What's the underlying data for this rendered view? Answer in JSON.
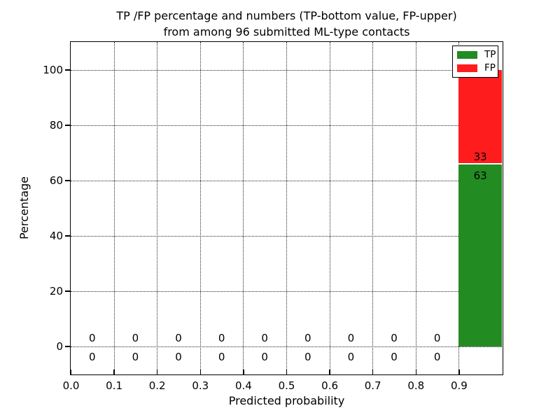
{
  "title": {
    "line1": "TP /FP percentage and numbers (TP-bottom value, FP-upper)",
    "line2": "from among 96 submitted ML-type contacts"
  },
  "axes": {
    "xlabel": "Predicted probability",
    "ylabel": "Percentage"
  },
  "legend": {
    "items": [
      {
        "label": "TP",
        "color": "#228B22"
      },
      {
        "label": "FP",
        "color": "#FF1C1C"
      }
    ]
  },
  "chart_data": {
    "type": "bar",
    "stacked": true,
    "title": "TP /FP percentage and numbers (TP-bottom value, FP-upper) from among 96 submitted ML-type contacts",
    "xlabel": "Predicted probability",
    "ylabel": "Percentage",
    "xlim": [
      0.0,
      1.0
    ],
    "ylim": [
      -10,
      110
    ],
    "xticks": [
      0.0,
      0.1,
      0.2,
      0.3,
      0.4,
      0.5,
      0.6,
      0.7,
      0.8,
      0.9
    ],
    "xtick_labels": [
      "0.0",
      "0.1",
      "0.2",
      "0.3",
      "0.4",
      "0.5",
      "0.6",
      "0.7",
      "0.8",
      "0.9"
    ],
    "yticks": [
      0,
      20,
      40,
      60,
      80,
      100
    ],
    "ytick_labels": [
      "0",
      "20",
      "40",
      "60",
      "80",
      "100"
    ],
    "grid": true,
    "grid_style": "dotted",
    "legend_position": "upper right",
    "total_submitted": 96,
    "bin_width": 0.1,
    "bin_centers": [
      0.05,
      0.15,
      0.25,
      0.35,
      0.45,
      0.55,
      0.65,
      0.75,
      0.85,
      0.95
    ],
    "categories": [
      "0.0-0.1",
      "0.1-0.2",
      "0.2-0.3",
      "0.3-0.4",
      "0.4-0.5",
      "0.5-0.6",
      "0.6-0.7",
      "0.7-0.8",
      "0.8-0.9",
      "0.9-1.0"
    ],
    "series": [
      {
        "name": "TP",
        "color": "#228B22",
        "counts": [
          0,
          0,
          0,
          0,
          0,
          0,
          0,
          0,
          0,
          63
        ],
        "percentages": [
          0,
          0,
          0,
          0,
          0,
          0,
          0,
          0,
          0,
          65.625
        ]
      },
      {
        "name": "FP",
        "color": "#FF1C1C",
        "counts": [
          0,
          0,
          0,
          0,
          0,
          0,
          0,
          0,
          0,
          33
        ],
        "percentages": [
          0,
          0,
          0,
          0,
          0,
          0,
          0,
          0,
          0,
          34.375
        ]
      }
    ]
  }
}
